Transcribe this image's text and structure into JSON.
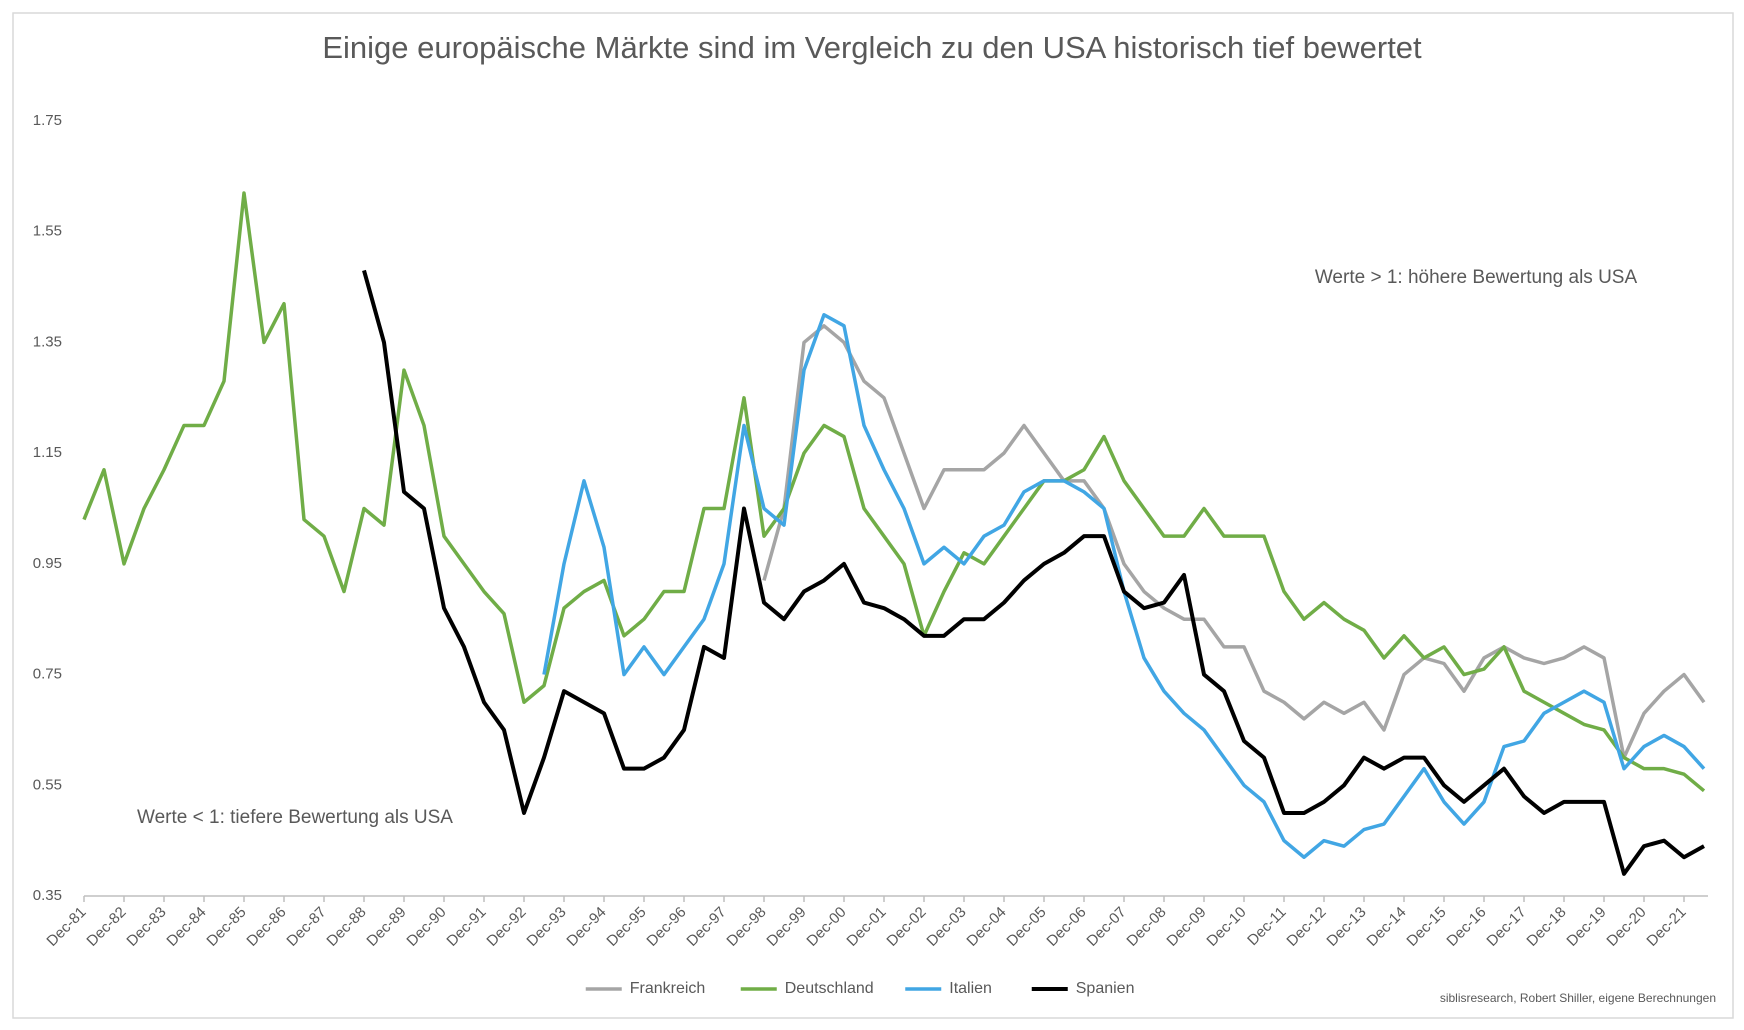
{
  "chart_data": {
    "type": "line",
    "title": "Einige europäische Märkte sind im Vergleich zu den USA historisch tief bewertet",
    "annotations": [
      "Werte > 1: höhere Bewertung als USA",
      "Werte < 1: tiefere Bewertung als USA"
    ],
    "source": "siblisresearch, Robert Shiller, eigene Berechnungen",
    "categories": [
      "Dec-81",
      null,
      "Dec-82",
      null,
      "Dec-83",
      null,
      "Dec-84",
      null,
      "Dec-85",
      null,
      "Dec-86",
      null,
      "Dec-87",
      null,
      "Dec-88",
      null,
      "Dec-89",
      null,
      "Dec-90",
      null,
      "Dec-91",
      null,
      "Dec-92",
      null,
      "Dec-93",
      null,
      "Dec-94",
      null,
      "Dec-95",
      null,
      "Dec-96",
      null,
      "Dec-97",
      null,
      "Dec-98",
      null,
      "Dec-99",
      null,
      "Dec-00",
      null,
      "Dec-01",
      null,
      "Dec-02",
      null,
      "Dec-03",
      null,
      "Dec-04",
      null,
      "Dec-05",
      null,
      "Dec-06",
      null,
      "Dec-07",
      null,
      "Dec-08",
      null,
      "Dec-09",
      null,
      "Dec-10",
      null,
      "Dec-11",
      null,
      "Dec-12",
      null,
      "Dec-13",
      null,
      "Dec-14",
      null,
      "Dec-15",
      null,
      "Dec-16",
      null,
      "Dec-17",
      null,
      "Dec-18",
      null,
      "Dec-19",
      null,
      "Dec-20",
      null,
      "Dec-21",
      null
    ],
    "series": [
      {
        "name": "Frankreich",
        "color": "#a5a5a5",
        "width": 3.5,
        "values": [
          null,
          null,
          null,
          null,
          null,
          null,
          null,
          null,
          null,
          null,
          null,
          null,
          null,
          null,
          null,
          null,
          null,
          null,
          null,
          null,
          null,
          null,
          null,
          null,
          null,
          null,
          null,
          null,
          null,
          null,
          null,
          null,
          null,
          null,
          0.92,
          1.05,
          1.35,
          1.38,
          1.35,
          1.28,
          1.25,
          1.15,
          1.05,
          1.12,
          1.12,
          1.12,
          1.15,
          1.2,
          1.15,
          1.1,
          1.1,
          1.05,
          0.95,
          0.9,
          0.87,
          0.85,
          0.85,
          0.8,
          0.8,
          0.72,
          0.7,
          0.67,
          0.7,
          0.68,
          0.7,
          0.65,
          0.75,
          0.78,
          0.77,
          0.72,
          0.78,
          0.8,
          0.78,
          0.77,
          0.78,
          0.8,
          0.78,
          0.6,
          0.68,
          0.72,
          0.75,
          0.7
        ]
      },
      {
        "name": "Deutschland",
        "color": "#70ad47",
        "width": 3.5,
        "values": [
          1.03,
          1.12,
          0.95,
          1.05,
          1.12,
          1.2,
          1.2,
          1.28,
          1.62,
          1.35,
          1.42,
          1.03,
          1.0,
          0.9,
          1.05,
          1.02,
          1.3,
          1.2,
          1.0,
          0.95,
          0.9,
          0.86,
          0.7,
          0.73,
          0.87,
          0.9,
          0.92,
          0.82,
          0.85,
          0.9,
          0.9,
          1.05,
          1.05,
          1.25,
          1.0,
          1.05,
          1.15,
          1.2,
          1.18,
          1.05,
          1.0,
          0.95,
          0.82,
          0.9,
          0.97,
          0.95,
          1.0,
          1.05,
          1.1,
          1.1,
          1.12,
          1.18,
          1.1,
          1.05,
          1.0,
          1.0,
          1.05,
          1.0,
          1.0,
          1.0,
          0.9,
          0.85,
          0.88,
          0.85,
          0.83,
          0.78,
          0.82,
          0.78,
          0.8,
          0.75,
          0.76,
          0.8,
          0.72,
          0.7,
          0.68,
          0.66,
          0.65,
          0.6,
          0.58,
          0.58,
          0.57,
          0.54
        ]
      },
      {
        "name": "Italien",
        "color": "#41a6e4",
        "width": 3.5,
        "values": [
          null,
          null,
          null,
          null,
          null,
          null,
          null,
          null,
          null,
          null,
          null,
          null,
          null,
          null,
          null,
          null,
          null,
          null,
          null,
          null,
          null,
          null,
          null,
          0.75,
          0.95,
          1.1,
          0.98,
          0.75,
          0.8,
          0.75,
          0.8,
          0.85,
          0.95,
          1.2,
          1.05,
          1.02,
          1.3,
          1.4,
          1.38,
          1.2,
          1.12,
          1.05,
          0.95,
          0.98,
          0.95,
          1.0,
          1.02,
          1.08,
          1.1,
          1.1,
          1.08,
          1.05,
          0.9,
          0.78,
          0.72,
          0.68,
          0.65,
          0.6,
          0.55,
          0.52,
          0.45,
          0.42,
          0.45,
          0.44,
          0.47,
          0.48,
          0.53,
          0.58,
          0.52,
          0.48,
          0.52,
          0.62,
          0.63,
          0.68,
          0.7,
          0.72,
          0.7,
          0.58,
          0.62,
          0.64,
          0.62,
          0.58
        ]
      },
      {
        "name": "Spanien",
        "color": "#000000",
        "width": 4,
        "values": [
          null,
          null,
          null,
          null,
          null,
          null,
          null,
          null,
          null,
          null,
          null,
          null,
          null,
          null,
          1.48,
          1.35,
          1.08,
          1.05,
          0.87,
          0.8,
          0.7,
          0.65,
          0.5,
          0.6,
          0.72,
          0.7,
          0.68,
          0.58,
          0.58,
          0.6,
          0.65,
          0.8,
          0.78,
          1.05,
          0.88,
          0.85,
          0.9,
          0.92,
          0.95,
          0.88,
          0.87,
          0.85,
          0.82,
          0.82,
          0.85,
          0.85,
          0.88,
          0.92,
          0.95,
          0.97,
          1.0,
          1.0,
          0.9,
          0.87,
          0.88,
          0.93,
          0.75,
          0.72,
          0.63,
          0.6,
          0.5,
          0.5,
          0.52,
          0.55,
          0.6,
          0.58,
          0.6,
          0.6,
          0.55,
          0.52,
          0.55,
          0.58,
          0.53,
          0.5,
          0.52,
          0.52,
          0.52,
          0.39,
          0.44,
          0.45,
          0.42,
          0.44
        ]
      }
    ],
    "ylim": [
      0.35,
      1.75
    ],
    "yticks": [
      0.35,
      0.55,
      0.75,
      0.95,
      1.15,
      1.35,
      1.55,
      1.75
    ],
    "grid": false,
    "legend": "bottom"
  }
}
